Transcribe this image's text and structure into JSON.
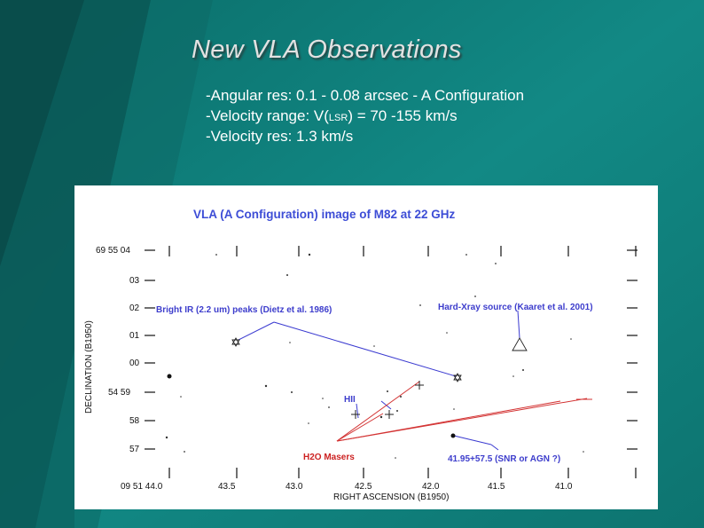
{
  "slide": {
    "title": "New VLA  Observations",
    "bullets": [
      {
        "pre": "-Angular res: 0.1 - 0.08 arcsec  - A Configuration",
        "sub": "",
        "post": ""
      },
      {
        "pre": "-Velocity range: V(",
        "sub": "LSR",
        "post": ") = 70 -155 km/s"
      },
      {
        "pre": "-Velocity res: 1.3 km/s",
        "sub": "",
        "post": ""
      }
    ]
  },
  "figure": {
    "title": "VLA (A Configuration) image of M82 at 22 GHz",
    "x_axis_label": "RIGHT ASCENSION (B1950)",
    "y_axis_label": "DECLINATION (B1950)",
    "x_ticks": [
      "09 51 44.0",
      "43.5",
      "43.0",
      "42.5",
      "42.0",
      "41.5",
      "41.0"
    ],
    "y_ticks": [
      "69 55 04",
      "03",
      "02",
      "01",
      "00",
      "54 59",
      "58",
      "57"
    ],
    "annotations": {
      "ir_peaks": "Bright IR (2.2 um) peaks (Dietz et al. 1986)",
      "hard_xray": "Hard-Xray source (Kaaret et al. 2001)",
      "hii": "HII",
      "h2o_masers": "H2O Masers",
      "snr_agn": "41.95+57.5 (SNR or AGN ?)"
    },
    "colors": {
      "title": "#3d4dd6",
      "blue_label": "#3d3dcc",
      "red_label": "#cc2222",
      "blue_line": "#3a3ad0",
      "red_line": "#d33333"
    },
    "icons": {
      "ir_peak": "star-of-david-icon",
      "xray": "triangle-icon",
      "hii": "plus-icon",
      "snr": "dot-icon"
    }
  }
}
